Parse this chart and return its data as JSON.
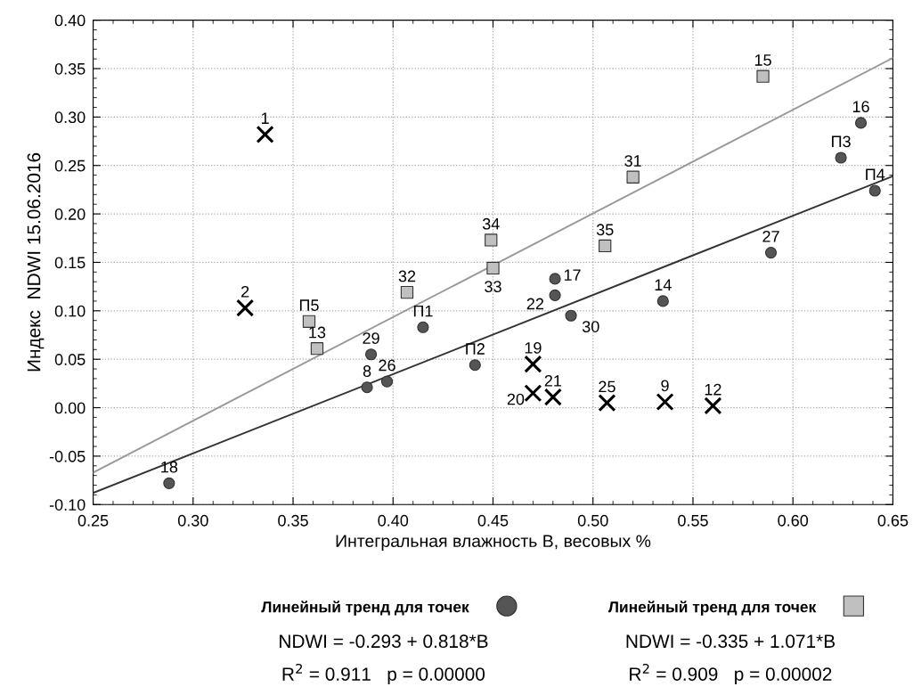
{
  "chart_data": {
    "type": "scatter",
    "xlabel": "Интегральная влажность В, весовых %",
    "ylabel": "Индекс  NDWI 15.06.2016",
    "xlim": [
      0.25,
      0.65
    ],
    "ylim": [
      -0.1,
      0.4
    ],
    "xticks": [
      0.25,
      {
        "value": 0.3,
        "label": "0.30"
      },
      0.35,
      {
        "value": 0.4,
        "label": "0.40"
      },
      0.45,
      {
        "value": 0.5,
        "label": "0.50"
      },
      0.55,
      {
        "value": 0.6,
        "label": "0.60"
      },
      0.65
    ],
    "yticks": [
      {
        "value": -0.1,
        "label": "-0.10"
      },
      -0.05,
      {
        "value": 0.0,
        "label": "0.00"
      },
      0.05,
      {
        "value": 0.1,
        "label": "0.10"
      },
      0.15,
      {
        "value": 0.2,
        "label": "0.20"
      },
      0.25,
      {
        "value": 0.3,
        "label": "0.30"
      },
      0.35,
      {
        "value": 0.4,
        "label": "0.40"
      }
    ],
    "grid": true,
    "series": [
      {
        "marker": "circle",
        "color": "#555555",
        "x": [
          0.288,
          0.415,
          0.389,
          0.387,
          0.397,
          0.481,
          0.481,
          0.489,
          0.535,
          0.441,
          0.589,
          0.634,
          0.624,
          0.641
        ],
        "values": [
          -0.078,
          0.083,
          0.055,
          0.021,
          0.027,
          0.133,
          0.116,
          0.095,
          0.11,
          0.044,
          0.16,
          0.294,
          0.258,
          0.224
        ]
      },
      {
        "marker": "square",
        "color": "#c0c0c0",
        "x": [
          0.358,
          0.362,
          0.407,
          0.45,
          0.449,
          0.506,
          0.52,
          0.585
        ],
        "values": [
          0.089,
          0.061,
          0.119,
          0.144,
          0.173,
          0.167,
          0.238,
          0.342
        ]
      },
      {
        "marker": "cross",
        "color": "#000000",
        "x": [
          0.336,
          0.326,
          0.47,
          0.47,
          0.48,
          0.507,
          0.536,
          0.56
        ],
        "values": [
          0.282,
          0.103,
          0.045,
          0.015,
          0.011,
          0.005,
          0.006,
          0.002
        ]
      },
      {
        "type": "line",
        "color": "#333333",
        "x": [
          0.25,
          0.65
        ],
        "values": [
          -0.088,
          0.239
        ]
      },
      {
        "type": "line",
        "color": "#999999",
        "x": [
          0.25,
          0.65
        ],
        "values": [
          -0.067,
          0.361
        ]
      }
    ],
    "annotations": [
      {
        "text": "18",
        "x": 0.288,
        "y": -0.078
      },
      {
        "text": "П1",
        "x": 0.415,
        "y": 0.083
      },
      {
        "text": "29",
        "x": 0.389,
        "y": 0.055
      },
      {
        "text": "8",
        "x": 0.387,
        "y": 0.021
      },
      {
        "text": "26",
        "x": 0.397,
        "y": 0.027
      },
      {
        "text": "17",
        "x": 0.481,
        "y": 0.133
      },
      {
        "text": "22",
        "x": 0.481,
        "y": 0.116
      },
      {
        "text": "30",
        "x": 0.489,
        "y": 0.095
      },
      {
        "text": "14",
        "x": 0.535,
        "y": 0.11
      },
      {
        "text": "П2",
        "x": 0.441,
        "y": 0.044
      },
      {
        "text": "27",
        "x": 0.589,
        "y": 0.16
      },
      {
        "text": "16",
        "x": 0.634,
        "y": 0.294
      },
      {
        "text": "П3",
        "x": 0.624,
        "y": 0.258
      },
      {
        "text": "П4",
        "x": 0.641,
        "y": 0.224
      },
      {
        "text": "П5",
        "x": 0.358,
        "y": 0.089
      },
      {
        "text": "13",
        "x": 0.362,
        "y": 0.061
      },
      {
        "text": "32",
        "x": 0.407,
        "y": 0.119
      },
      {
        "text": "33",
        "x": 0.45,
        "y": 0.144
      },
      {
        "text": "34",
        "x": 0.449,
        "y": 0.173
      },
      {
        "text": "35",
        "x": 0.506,
        "y": 0.167
      },
      {
        "text": "31",
        "x": 0.52,
        "y": 0.238
      },
      {
        "text": "15",
        "x": 0.585,
        "y": 0.342
      },
      {
        "text": "1",
        "x": 0.336,
        "y": 0.282
      },
      {
        "text": "2",
        "x": 0.326,
        "y": 0.103
      },
      {
        "text": "19",
        "x": 0.47,
        "y": 0.045
      },
      {
        "text": "20",
        "x": 0.47,
        "y": 0.015
      },
      {
        "text": "21",
        "x": 0.48,
        "y": 0.011
      },
      {
        "text": "25",
        "x": 0.507,
        "y": 0.005
      },
      {
        "text": "9",
        "x": 0.536,
        "y": 0.006
      },
      {
        "text": "12",
        "x": 0.56,
        "y": 0.002
      },
      "Линейный тренд для точек",
      "NDWI = -0.293 + 0.818*В",
      "R$^{2}$ = 0.911   p = 0.00000",
      "Линейный тренд для точек",
      "NDWI = -0.335 + 1.071*В",
      "R$^{2}$ = 0.909   p = 0.00002"
    ]
  }
}
